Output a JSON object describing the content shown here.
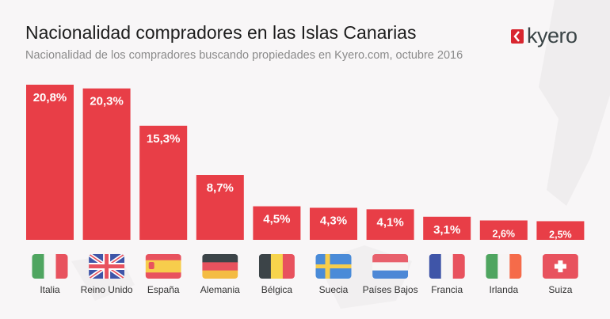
{
  "header": {
    "logo_text": "kyero"
  },
  "chart_data": {
    "type": "bar",
    "title": "Nacionalidad compradores en las Islas Canarias",
    "subtitle": "Nacionalidad de los compradores buscando propiedades en Kyero.com, octubre 2016",
    "categories": [
      "Italia",
      "Reino Unido",
      "España",
      "Alemania",
      "Bélgica",
      "Suecia",
      "Países Bajos",
      "Francia",
      "Irlanda",
      "Suiza"
    ],
    "values": [
      20.8,
      20.3,
      15.3,
      8.7,
      4.5,
      4.3,
      4.1,
      3.1,
      2.6,
      2.5
    ],
    "labels": [
      "20,8%",
      "20,3%",
      "15,3%",
      "8,7%",
      "4,5%",
      "4,3%",
      "4,1%",
      "3,1%",
      "2,6%",
      "2,5%"
    ],
    "flags": [
      "it",
      "gb",
      "es",
      "de",
      "be",
      "se",
      "nl",
      "fr",
      "ie",
      "ch"
    ],
    "xlabel": "",
    "ylabel": "",
    "ylim": [
      0,
      20.8
    ],
    "grid": false,
    "legend": "none",
    "bar_color": "#e83e47"
  }
}
